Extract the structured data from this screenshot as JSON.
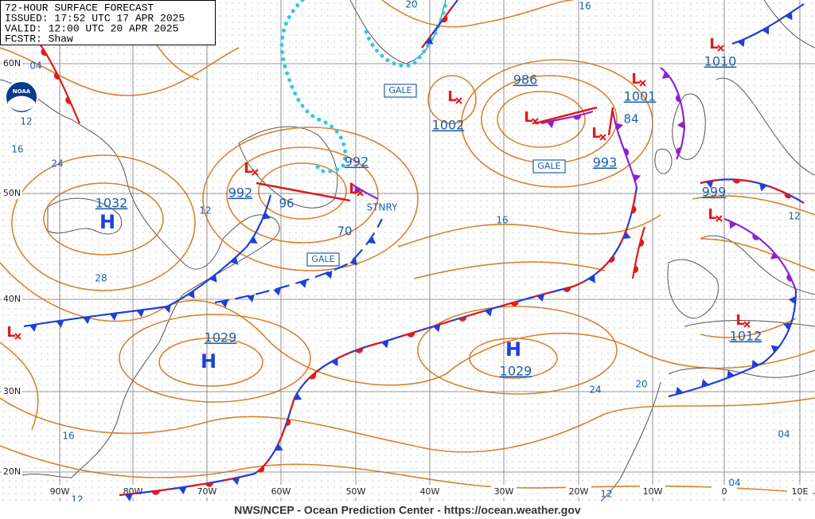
{
  "header": {
    "title": "72-HOUR SURFACE FORECAST",
    "issued": "ISSUED: 17:52 UTC 17 APR 2025",
    "valid": "VALID: 12:00 UTC 20 APR 2025",
    "forecaster": "FCSTR: Shaw"
  },
  "logo": "NOAA",
  "footer": "NWS/NCEP - Ocean Prediction Center - https://ocean.weather.gov",
  "grid": {
    "longitudes": [
      "90W",
      "80W",
      "70W",
      "60W",
      "50W",
      "40W",
      "30W",
      "20W",
      "10W",
      "0",
      "10E"
    ],
    "latitudes": [
      "60N",
      "50N",
      "40N",
      "30N",
      "20N"
    ]
  },
  "highs": [
    {
      "symbol": "H",
      "pressure": "1032"
    },
    {
      "symbol": "H",
      "pressure": "1029"
    },
    {
      "symbol": "H",
      "pressure": "1029"
    }
  ],
  "lows": [
    {
      "symbol": "L",
      "pressure": "992"
    },
    {
      "symbol": "L",
      "pressure": "992"
    },
    {
      "symbol": "L",
      "pressure": "1002"
    },
    {
      "symbol": "L",
      "pressure": "986"
    },
    {
      "symbol": "L",
      "pressure": "993"
    },
    {
      "symbol": "L",
      "pressure": "1001"
    },
    {
      "symbol": "L",
      "pressure": "1010"
    },
    {
      "symbol": "L",
      "pressure": "999"
    },
    {
      "symbol": "L",
      "pressure": "1012"
    },
    {
      "symbol": "L"
    }
  ],
  "gale_warnings": [
    "GALE",
    "GALE",
    "GALE"
  ],
  "front_labels": [
    "STNRY"
  ],
  "isobar_labels": [
    "04",
    "12",
    "16",
    "24",
    "28",
    "12",
    "96",
    "70",
    "20",
    "16",
    "16",
    "84",
    "24",
    "20",
    "12",
    "04",
    "04",
    "16",
    "12",
    "12"
  ]
}
